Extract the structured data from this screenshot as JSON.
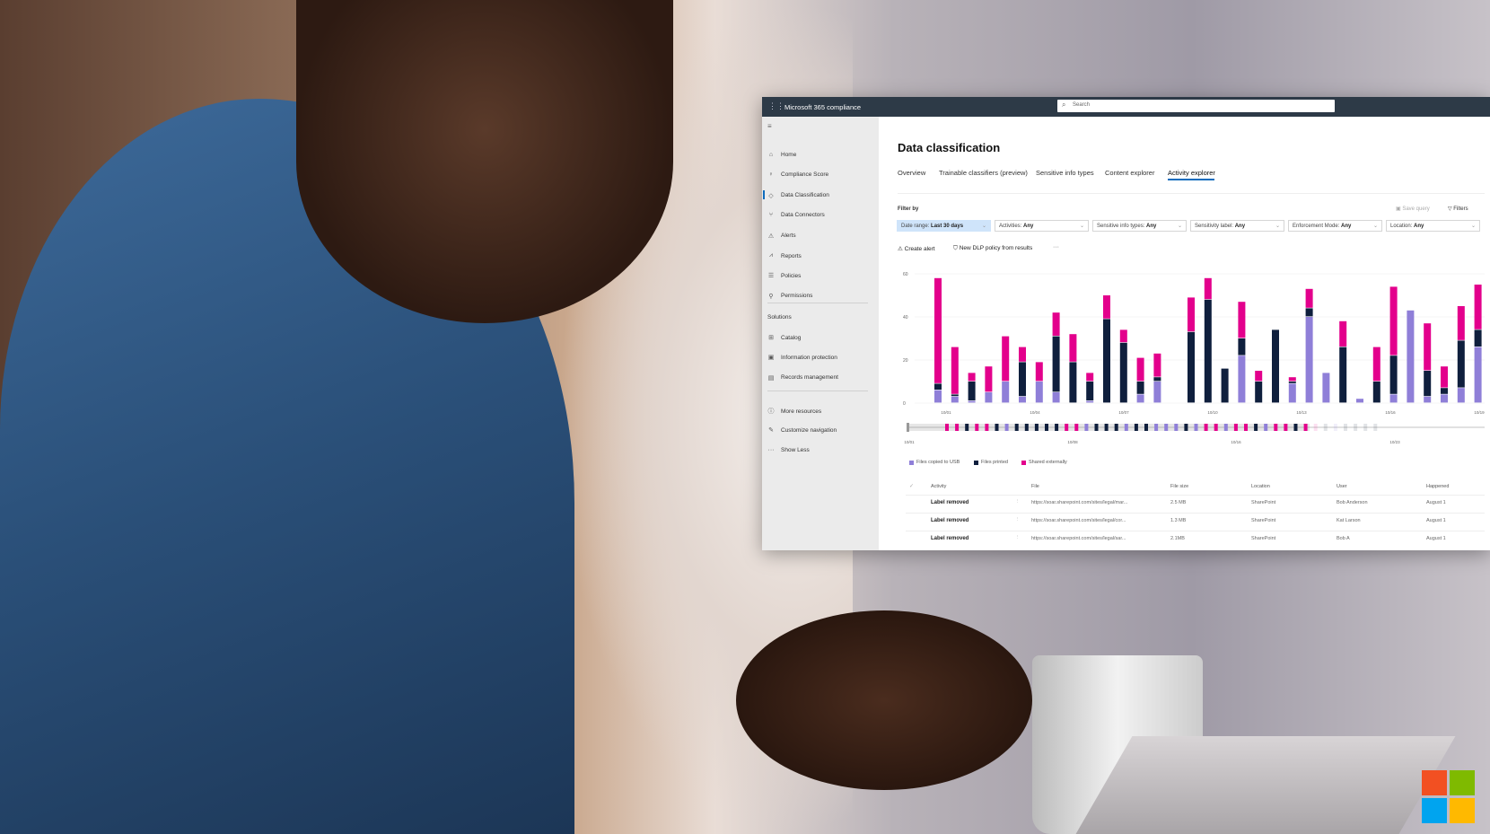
{
  "app": {
    "title": "Microsoft 365 compliance",
    "search_placeholder": "Search"
  },
  "sidebar": {
    "items": [
      {
        "label": "Home",
        "icon": "home-icon"
      },
      {
        "label": "Compliance Score",
        "icon": "trophy-icon"
      },
      {
        "label": "Data Classification",
        "icon": "tag-icon",
        "active": true
      },
      {
        "label": "Data Connectors",
        "icon": "connector-icon"
      },
      {
        "label": "Alerts",
        "icon": "warning-icon"
      },
      {
        "label": "Reports",
        "icon": "chart-icon"
      },
      {
        "label": "Policies",
        "icon": "sliders-icon"
      },
      {
        "label": "Permissions",
        "icon": "key-icon"
      }
    ],
    "solutions_heading": "Solutions",
    "solutions": [
      {
        "label": "Catalog",
        "icon": "grid-icon"
      },
      {
        "label": "Information protection",
        "icon": "lock-doc-icon"
      },
      {
        "label": "Records management",
        "icon": "records-icon"
      }
    ],
    "footer": [
      {
        "label": "More resources",
        "icon": "info-icon"
      },
      {
        "label": "Customize navigation",
        "icon": "pencil-icon"
      },
      {
        "label": "Show Less",
        "icon": "ellipsis-icon"
      }
    ]
  },
  "page": {
    "title": "Data classification",
    "tabs": [
      "Overview",
      "Trainable classifiers (preview)",
      "Sensitive info types",
      "Content explorer",
      "Activity explorer"
    ],
    "active_tab": "Activity explorer"
  },
  "filters": {
    "label": "Filter by",
    "save_query": "Save query",
    "filters_button": "Filters",
    "dropdowns": [
      {
        "name": "Date range:",
        "value": "Last 30 days"
      },
      {
        "name": "Activities:",
        "value": "Any"
      },
      {
        "name": "Sensitive info types:",
        "value": "Any"
      },
      {
        "name": "Sensitivity label:",
        "value": "Any"
      },
      {
        "name": "Enforcement Mode:",
        "value": "Any"
      },
      {
        "name": "Location:",
        "value": "Any"
      }
    ]
  },
  "actions": {
    "create_alert": "Create alert",
    "new_dlp": "New DLP policy from results",
    "more": "···"
  },
  "chart_data": {
    "type": "bar",
    "stacked": true,
    "ylim": [
      0,
      60
    ],
    "yticks": [
      "0",
      "20",
      "40",
      "60"
    ],
    "xticks": [
      "10/01",
      "10/04",
      "10/07",
      "10/10",
      "10/13",
      "10/16",
      "10/19"
    ],
    "series": [
      {
        "name": "Files copied to USB",
        "color": "#8f7fd8",
        "values": [
          6,
          3,
          1,
          5,
          10,
          3,
          10,
          5,
          0,
          1,
          0,
          0,
          4,
          10,
          0,
          0,
          0,
          0,
          22,
          0,
          0,
          9,
          40,
          14,
          0,
          2,
          0,
          4,
          43,
          3,
          4,
          7,
          26
        ]
      },
      {
        "name": "Files printed",
        "color": "#0f1f3d",
        "values": [
          3,
          1,
          9,
          0,
          0,
          16,
          0,
          26,
          19,
          9,
          39,
          28,
          6,
          2,
          0,
          33,
          48,
          16,
          8,
          10,
          34,
          1,
          4,
          0,
          26,
          0,
          10,
          18,
          0,
          12,
          3,
          22,
          8
        ]
      },
      {
        "name": "Shared externally",
        "color": "#e3008c",
        "values": [
          49,
          22,
          4,
          12,
          21,
          7,
          9,
          11,
          13,
          4,
          11,
          6,
          11,
          11,
          0,
          16,
          10,
          0,
          17,
          5,
          0,
          2,
          9,
          0,
          12,
          0,
          16,
          32,
          0,
          22,
          10,
          16,
          21
        ]
      }
    ],
    "brush_labels": [
      "10/01",
      "10/08",
      "10/16",
      "10/23"
    ],
    "grid": true,
    "legend": "bottom-left"
  },
  "table": {
    "columns": [
      "Activity",
      "File",
      "File size",
      "Location",
      "User",
      "Happened"
    ],
    "rows": [
      {
        "activity": "Label removed",
        "file": "https://soar.sharepoint.com/sites/legal/mar...",
        "size": "2.5 MB",
        "location": "SharePoint",
        "user": "Bob Anderson",
        "happened": "August 1"
      },
      {
        "activity": "Label removed",
        "file": "https://soar.sharepoint.com/sites/legal/cor...",
        "size": "1.3 MB",
        "location": "SharePoint",
        "user": "Kat Larson",
        "happened": "August 1"
      },
      {
        "activity": "Label removed",
        "file": "https://soar.sharepoint.com/sites/legal/sar...",
        "size": "2.1MB",
        "location": "SharePoint",
        "user": "Bob A",
        "happened": "August 1"
      }
    ]
  },
  "brand": {
    "logo": "Microsoft",
    "colors": [
      "#f25022",
      "#7fba00",
      "#00a4ef",
      "#ffb900"
    ]
  }
}
